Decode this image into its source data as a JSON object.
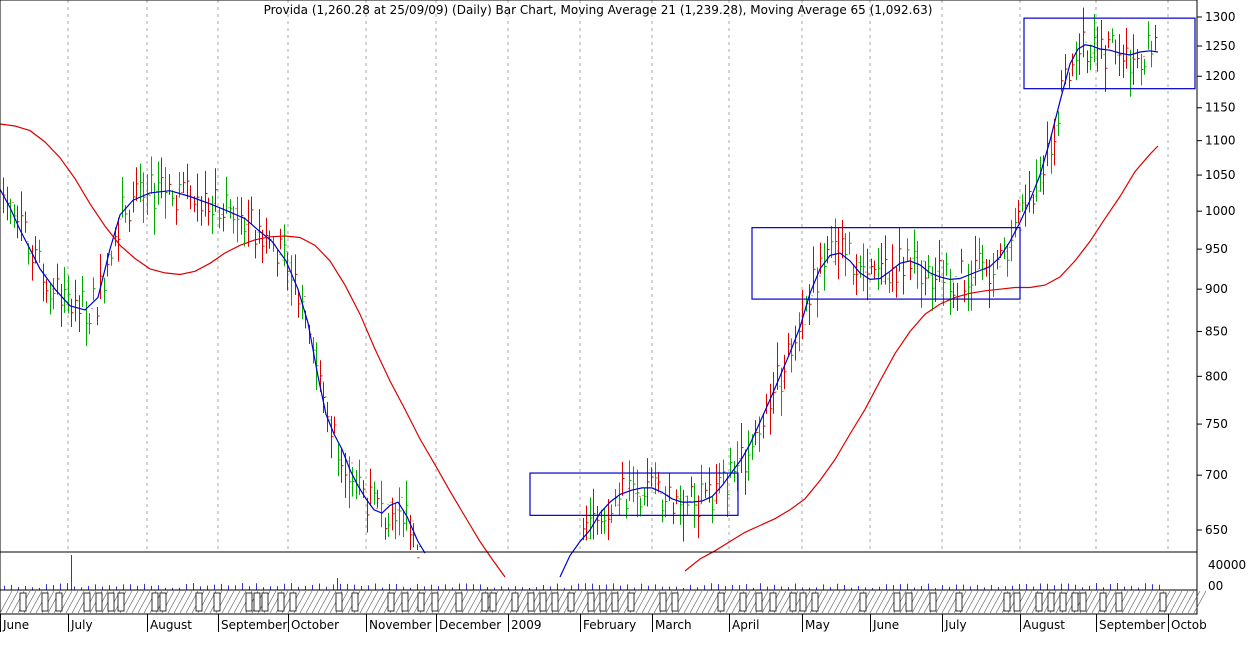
{
  "chart_data": {
    "type": "line",
    "title": "Provida (1,260.28 at 25/09/09) (Daily) Bar Chart, Moving Average 21 (1,239.28), Moving Average 65 (1,092.63)",
    "y_axis": {
      "scale": "log",
      "range": [
        630,
        1310
      ],
      "ticks": [
        650,
        700,
        750,
        800,
        850,
        900,
        950,
        1000,
        1050,
        1100,
        1150,
        1200,
        1250,
        1300
      ]
    },
    "volume_axis": {
      "ticks": [
        "40000",
        "00"
      ]
    },
    "x_axis": {
      "labels": [
        "June",
        "July",
        "August",
        "September",
        "October",
        "November",
        "December",
        "2009",
        "February",
        "March",
        "April",
        "May",
        "June",
        "July",
        "August",
        "September",
        "Octob"
      ]
    },
    "series": [
      {
        "name": "Moving Average 21",
        "color": "#0000cc",
        "values": [
          [
            0,
            1030
          ],
          [
            10,
            1005
          ],
          [
            20,
            975
          ],
          [
            30,
            950
          ],
          [
            40,
            925
          ],
          [
            55,
            900
          ],
          [
            70,
            880
          ],
          [
            85,
            875
          ],
          [
            98,
            890
          ],
          [
            110,
            950
          ],
          [
            120,
            995
          ],
          [
            133,
            1015
          ],
          [
            150,
            1025
          ],
          [
            170,
            1028
          ],
          [
            190,
            1020
          ],
          [
            210,
            1010
          ],
          [
            228,
            1000
          ],
          [
            245,
            990
          ],
          [
            258,
            975
          ],
          [
            272,
            960
          ],
          [
            286,
            935
          ],
          [
            298,
            900
          ],
          [
            308,
            860
          ],
          [
            318,
            800
          ],
          [
            326,
            760
          ],
          [
            334,
            740
          ],
          [
            342,
            725
          ],
          [
            350,
            705
          ],
          [
            358,
            690
          ],
          [
            366,
            678
          ],
          [
            374,
            668
          ],
          [
            382,
            665
          ],
          [
            390,
            672
          ],
          [
            398,
            675
          ],
          [
            407,
            662
          ],
          [
            418,
            640
          ],
          [
            425,
            630
          ]
        ]
      },
      {
        "name": "Moving Average 21",
        "color": "#0000cc",
        "values": [
          [
            560,
            610
          ],
          [
            570,
            628
          ],
          [
            580,
            640
          ],
          [
            590,
            650
          ],
          [
            600,
            665
          ],
          [
            610,
            675
          ],
          [
            620,
            682
          ],
          [
            632,
            686
          ],
          [
            642,
            688
          ],
          [
            652,
            688
          ],
          [
            662,
            684
          ],
          [
            672,
            678
          ],
          [
            682,
            675
          ],
          [
            692,
            675
          ],
          [
            702,
            676
          ],
          [
            712,
            680
          ],
          [
            722,
            690
          ],
          [
            732,
            703
          ],
          [
            742,
            716
          ],
          [
            750,
            730
          ],
          [
            760,
            752
          ],
          [
            770,
            775
          ],
          [
            780,
            800
          ],
          [
            790,
            826
          ],
          [
            800,
            855
          ],
          [
            810,
            895
          ],
          [
            820,
            925
          ],
          [
            830,
            942
          ],
          [
            840,
            945
          ],
          [
            850,
            935
          ],
          [
            860,
            920
          ],
          [
            870,
            912
          ],
          [
            880,
            913
          ],
          [
            890,
            922
          ],
          [
            900,
            932
          ],
          [
            910,
            935
          ],
          [
            920,
            930
          ],
          [
            930,
            920
          ],
          [
            940,
            915
          ],
          [
            950,
            912
          ],
          [
            960,
            913
          ],
          [
            970,
            918
          ],
          [
            980,
            923
          ],
          [
            990,
            928
          ],
          [
            1000,
            940
          ],
          [
            1010,
            960
          ],
          [
            1020,
            985
          ],
          [
            1030,
            1015
          ],
          [
            1040,
            1050
          ],
          [
            1050,
            1100
          ],
          [
            1060,
            1160
          ],
          [
            1070,
            1220
          ],
          [
            1078,
            1245
          ],
          [
            1085,
            1252
          ],
          [
            1092,
            1250
          ],
          [
            1100,
            1245
          ],
          [
            1110,
            1243
          ],
          [
            1120,
            1238
          ],
          [
            1130,
            1235
          ],
          [
            1140,
            1240
          ],
          [
            1150,
            1242
          ],
          [
            1158,
            1240
          ]
        ]
      },
      {
        "name": "Moving Average 65",
        "color": "#dd0000",
        "values": [
          [
            0,
            1125
          ],
          [
            15,
            1122
          ],
          [
            30,
            1115
          ],
          [
            45,
            1098
          ],
          [
            60,
            1075
          ],
          [
            75,
            1045
          ],
          [
            90,
            1010
          ],
          [
            105,
            980
          ],
          [
            120,
            955
          ],
          [
            135,
            938
          ],
          [
            150,
            925
          ],
          [
            165,
            920
          ],
          [
            180,
            918
          ],
          [
            195,
            922
          ],
          [
            210,
            932
          ],
          [
            225,
            945
          ],
          [
            240,
            955
          ],
          [
            255,
            962
          ],
          [
            270,
            966
          ],
          [
            285,
            967
          ],
          [
            300,
            965
          ],
          [
            315,
            955
          ],
          [
            330,
            935
          ],
          [
            345,
            905
          ],
          [
            360,
            870
          ],
          [
            375,
            830
          ],
          [
            390,
            795
          ],
          [
            405,
            765
          ],
          [
            420,
            735
          ],
          [
            435,
            710
          ],
          [
            450,
            685
          ],
          [
            465,
            662
          ],
          [
            480,
            640
          ],
          [
            492,
            625
          ],
          [
            505,
            610
          ]
        ]
      },
      {
        "name": "Moving Average 65",
        "color": "#dd0000",
        "values": [
          [
            685,
            615
          ],
          [
            700,
            625
          ],
          [
            715,
            632
          ],
          [
            730,
            640
          ],
          [
            745,
            648
          ],
          [
            760,
            654
          ],
          [
            775,
            660
          ],
          [
            790,
            668
          ],
          [
            805,
            678
          ],
          [
            820,
            695
          ],
          [
            835,
            715
          ],
          [
            850,
            740
          ],
          [
            865,
            765
          ],
          [
            880,
            795
          ],
          [
            895,
            825
          ],
          [
            910,
            850
          ],
          [
            925,
            870
          ],
          [
            940,
            882
          ],
          [
            955,
            890
          ],
          [
            970,
            895
          ],
          [
            985,
            898
          ],
          [
            1000,
            900
          ],
          [
            1015,
            902
          ],
          [
            1030,
            902
          ],
          [
            1045,
            905
          ],
          [
            1060,
            915
          ],
          [
            1075,
            935
          ],
          [
            1090,
            960
          ],
          [
            1105,
            990
          ],
          [
            1120,
            1020
          ],
          [
            1135,
            1055
          ],
          [
            1150,
            1080
          ],
          [
            1158,
            1092
          ]
        ]
      }
    ],
    "boxes": [
      {
        "x0": 530,
        "x1": 738,
        "y_low": 663,
        "y_high": 702
      },
      {
        "x0": 752,
        "x1": 1020,
        "y_low": 888,
        "y_high": 978
      },
      {
        "x0": 1024,
        "x1": 1195,
        "y_low": 1180,
        "y_high": 1298
      }
    ]
  }
}
